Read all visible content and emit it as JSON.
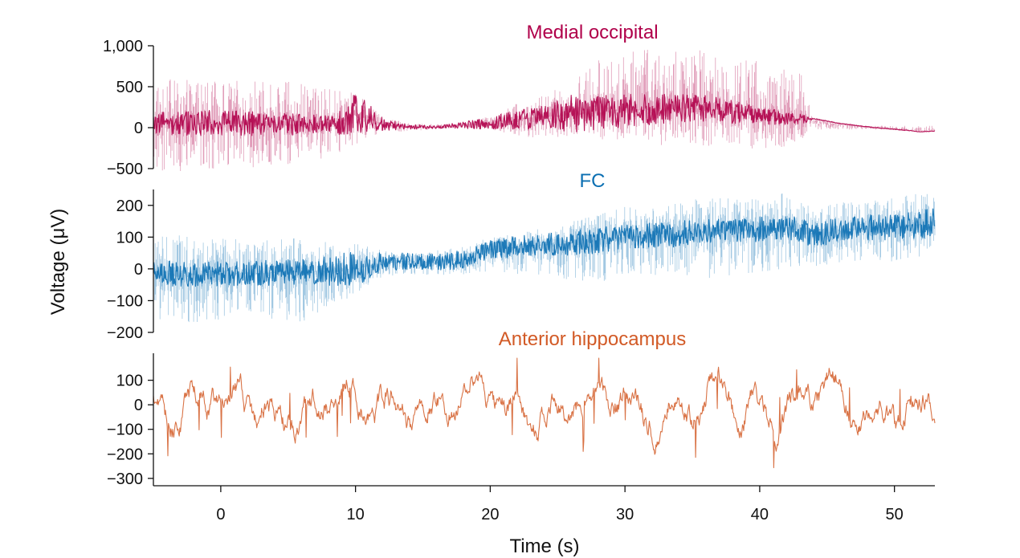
{
  "chart_data": {
    "type": "line",
    "xlabel": "Time (s)",
    "ylabel": "Voltage (μV)",
    "xlim": [
      -5,
      53
    ],
    "xticks": [
      0,
      10,
      20,
      30,
      40,
      50
    ],
    "grid": false,
    "legend": "none",
    "panels": [
      {
        "title": "Medial occipital",
        "color": "#b0004a",
        "ylim": [
          -500,
          1000
        ],
        "yticks": [
          -500,
          0,
          500,
          1000
        ],
        "ytick_labels": [
          "−500",
          "0",
          "500",
          "1,000"
        ],
        "envelope": {
          "t": [
            -5,
            -2,
            2,
            5,
            8,
            9,
            10,
            11,
            12,
            14,
            16,
            18,
            20,
            22,
            24,
            26,
            28,
            30,
            32,
            34,
            36,
            38,
            40,
            42,
            43.2,
            44,
            46,
            48,
            50,
            52,
            53
          ],
          "mid": [
            50,
            60,
            50,
            40,
            40,
            60,
            170,
            120,
            40,
            10,
            5,
            30,
            60,
            100,
            130,
            170,
            180,
            210,
            220,
            240,
            230,
            200,
            150,
            110,
            100,
            110,
            50,
            10,
            -20,
            -50,
            -40
          ],
          "core": [
            130,
            160,
            150,
            130,
            110,
            150,
            260,
            190,
            80,
            30,
            20,
            40,
            80,
            120,
            160,
            230,
            210,
            200,
            190,
            180,
            170,
            150,
            110,
            80,
            60,
            5,
            4,
            4,
            4,
            4,
            4
          ],
          "hi": [
            600,
            580,
            570,
            560,
            480,
            450,
            420,
            300,
            130,
            60,
            40,
            60,
            140,
            300,
            400,
            560,
            850,
            950,
            980,
            1000,
            930,
            860,
            830,
            700,
            650,
            30,
            25,
            25,
            25,
            25,
            25
          ],
          "lo": [
            -550,
            -520,
            -500,
            -470,
            -380,
            -300,
            -200,
            -160,
            -80,
            -40,
            -20,
            0,
            -40,
            -100,
            -150,
            -120,
            -150,
            -200,
            -220,
            -220,
            -230,
            -240,
            -260,
            -250,
            -220,
            -25,
            -25,
            -25,
            -25,
            -25,
            -25
          ]
        }
      },
      {
        "title": "FC",
        "color": "#0b6fb2",
        "ylim": [
          -200,
          250
        ],
        "yticks": [
          -200,
          -100,
          0,
          100,
          200
        ],
        "ytick_labels": [
          "−200",
          "−100",
          "0",
          "100",
          "200"
        ],
        "envelope": {
          "t": [
            -5,
            -2,
            2,
            6,
            10,
            12,
            14,
            16,
            18,
            20,
            22,
            24,
            26,
            28,
            30,
            32,
            34,
            36,
            38,
            40,
            42,
            44,
            46,
            48,
            50,
            52,
            53
          ],
          "mid": [
            -10,
            -20,
            -15,
            -10,
            0,
            20,
            25,
            20,
            30,
            60,
            70,
            75,
            80,
            90,
            100,
            105,
            110,
            120,
            125,
            125,
            130,
            110,
            120,
            130,
            130,
            140,
            150
          ],
          "core": [
            40,
            40,
            40,
            40,
            55,
            30,
            25,
            25,
            30,
            30,
            35,
            35,
            40,
            40,
            40,
            40,
            40,
            40,
            40,
            40,
            40,
            40,
            40,
            40,
            40,
            45,
            45
          ],
          "hi": [
            100,
            110,
            90,
            100,
            80,
            60,
            50,
            60,
            70,
            100,
            110,
            130,
            150,
            170,
            200,
            190,
            210,
            230,
            220,
            230,
            240,
            200,
            210,
            220,
            230,
            240,
            230
          ],
          "lo": [
            -170,
            -190,
            -150,
            -170,
            -80,
            -30,
            -20,
            -20,
            -20,
            -10,
            -20,
            -20,
            -50,
            -40,
            -30,
            -20,
            -20,
            -30,
            -20,
            -10,
            0,
            0,
            20,
            30,
            20,
            40,
            60
          ]
        }
      },
      {
        "title": "Anterior hippocampus",
        "color": "#d25a26",
        "ylim": [
          -330,
          210
        ],
        "yticks": [
          -300,
          -200,
          -100,
          0,
          100
        ],
        "ytick_labels": [
          "−300",
          "−200",
          "−100",
          "0",
          "100"
        ],
        "envelope": {
          "t": [
            -5,
            53
          ],
          "mid": [
            0,
            0
          ],
          "core": [
            60,
            60
          ],
          "hi": [
            190,
            190
          ],
          "lo": [
            -310,
            -310
          ]
        }
      }
    ]
  }
}
